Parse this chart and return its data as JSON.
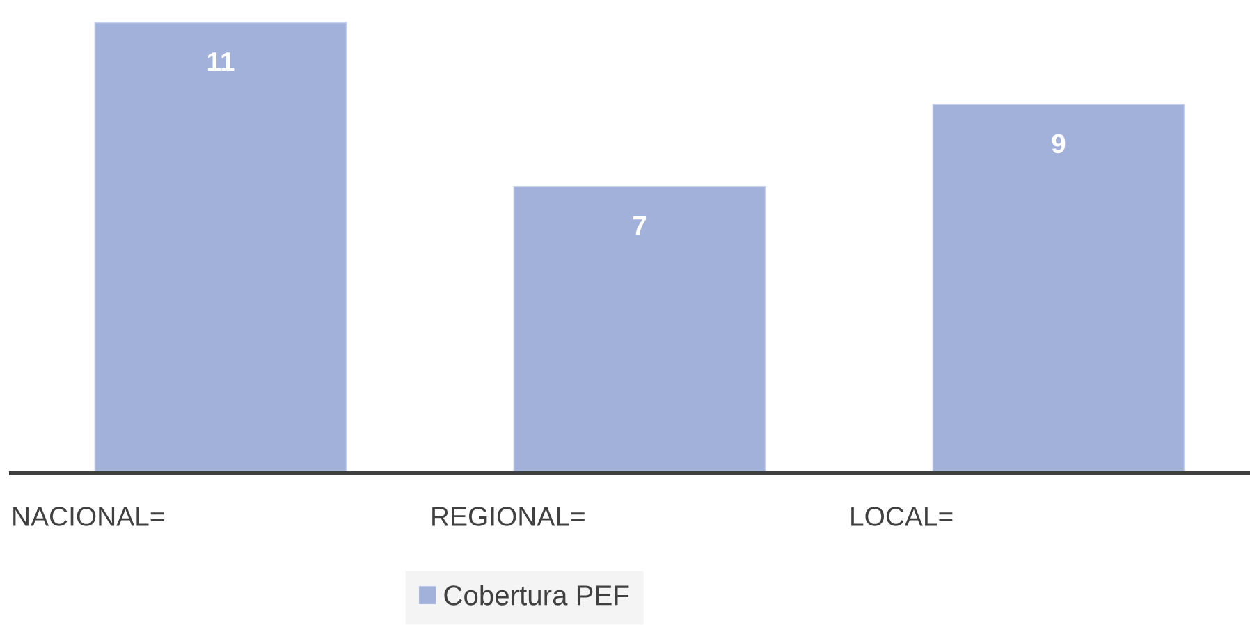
{
  "chart_data": {
    "type": "bar",
    "categories": [
      "NACIONAL=",
      "REGIONAL=",
      "LOCAL="
    ],
    "series": [
      {
        "name": "Cobertura PEF",
        "color": "#a2b1da",
        "values": [
          11,
          7,
          9
        ]
      }
    ],
    "tick_labels": "x",
    "data_labels": true,
    "legend": "bottom"
  }
}
